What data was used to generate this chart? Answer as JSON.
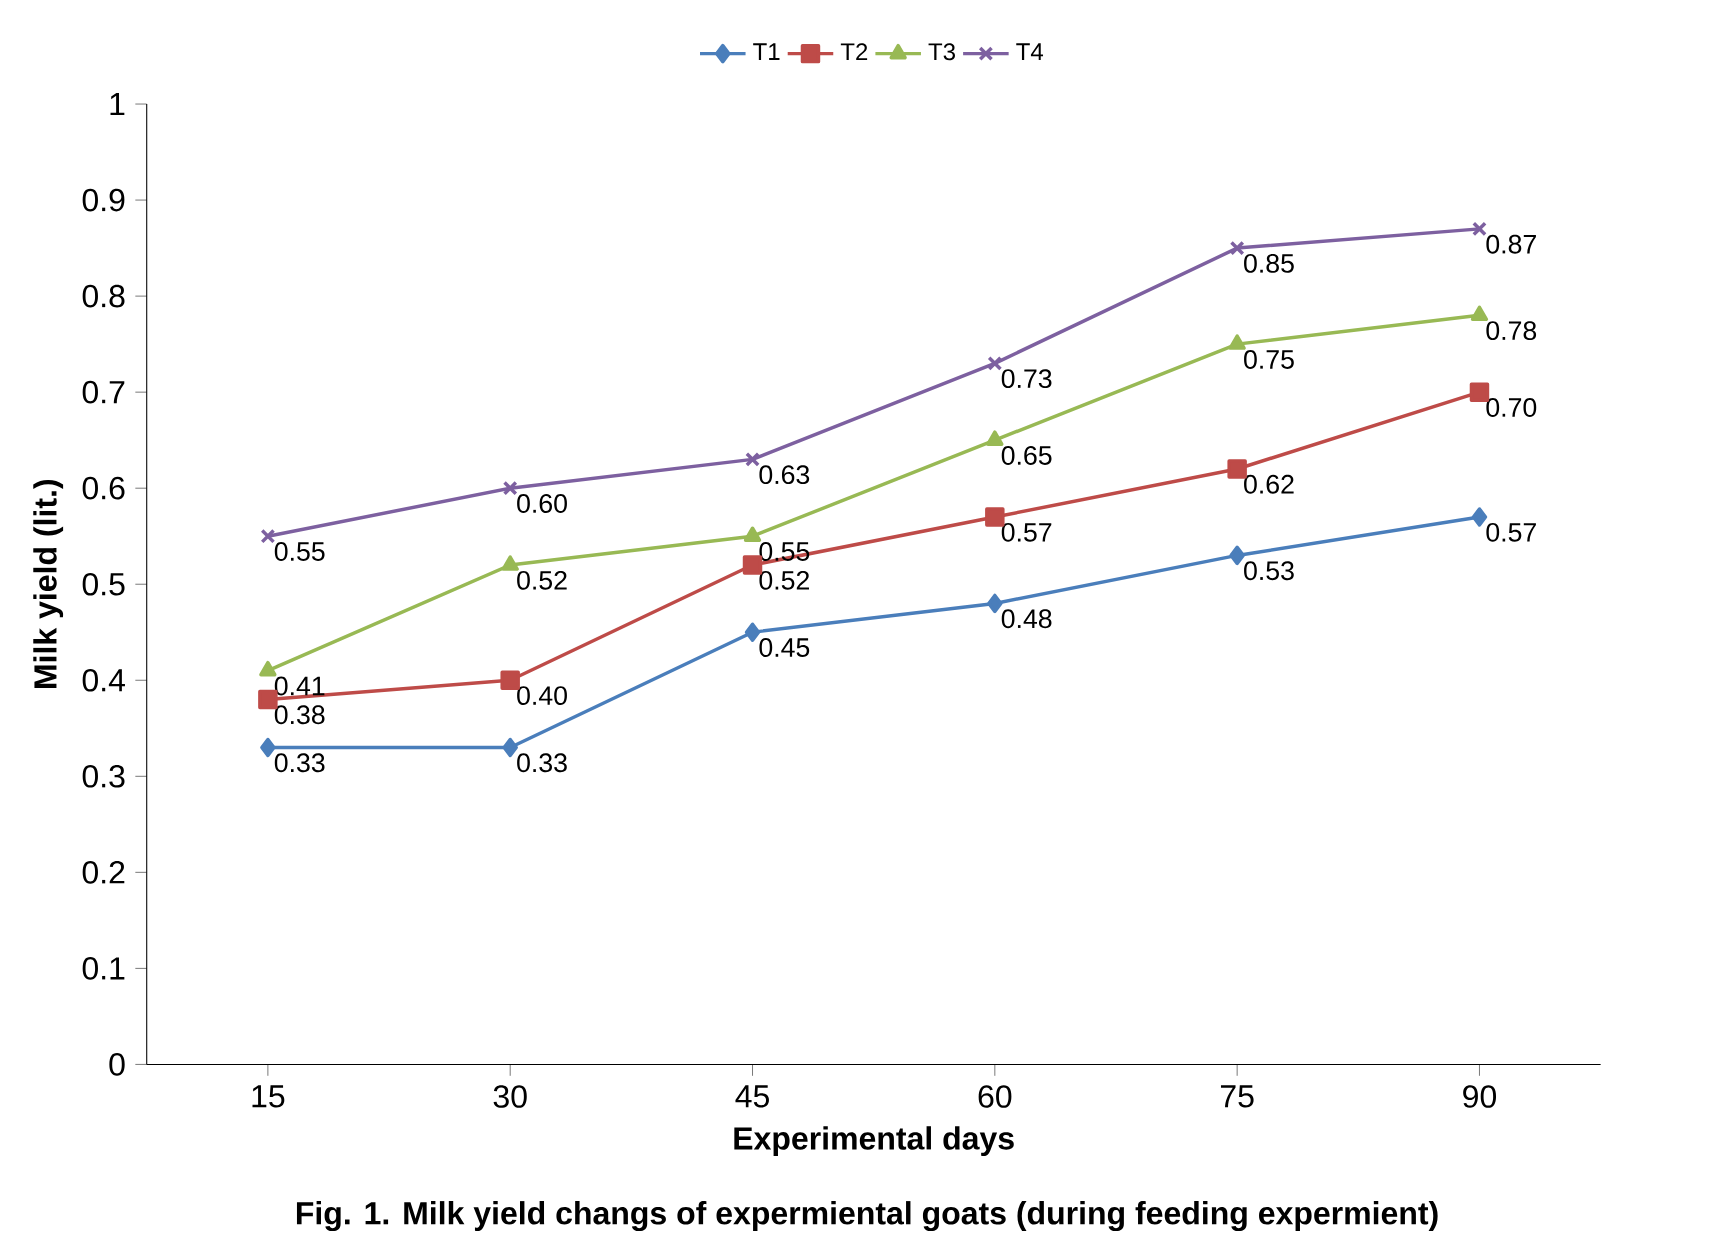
{
  "chart_data": {
    "type": "line",
    "xlabel": "Experimental days",
    "ylabel": "Milk yield (lit.)",
    "categories": [
      "15",
      "30",
      "45",
      "60",
      "75",
      "90"
    ],
    "ylim": [
      0,
      1
    ],
    "yticks": [
      0,
      0.1,
      0.2,
      0.3,
      0.4,
      0.5,
      0.6,
      0.7,
      0.8,
      0.9,
      1
    ],
    "legend": "top",
    "grid": false,
    "series": [
      {
        "name": "T1",
        "color": "#4a7ebb",
        "marker": "diamond",
        "values": [
          0.33,
          0.33,
          0.45,
          0.48,
          0.53,
          0.57
        ],
        "value_labels": [
          "0.33",
          "0.33",
          "0.45",
          "0.48",
          "0.53",
          "0.57"
        ]
      },
      {
        "name": "T2",
        "color": "#be4b48",
        "marker": "square",
        "values": [
          0.38,
          0.4,
          0.52,
          0.57,
          0.62,
          0.7
        ],
        "value_labels": [
          "0.38",
          "0.40",
          "0.52",
          "0.57",
          "0.62",
          "0.70"
        ]
      },
      {
        "name": "T3",
        "color": "#98b954",
        "marker": "triangle",
        "values": [
          0.41,
          0.52,
          0.55,
          0.65,
          0.75,
          0.78
        ],
        "value_labels": [
          "0.41",
          "0.52",
          "0.55",
          "0.65",
          "0.75",
          "0.78"
        ]
      },
      {
        "name": "T4",
        "color": "#7d60a0",
        "marker": "cross",
        "values": [
          0.55,
          0.6,
          0.63,
          0.73,
          0.85,
          0.87
        ],
        "value_labels": [
          "0.55",
          "0.60",
          "0.63",
          "0.73",
          "0.85",
          "0.87"
        ]
      }
    ],
    "annotations": [
      "Fig. 1. Milk yield changs of expermiental goats (during feeding expermient)"
    ]
  }
}
